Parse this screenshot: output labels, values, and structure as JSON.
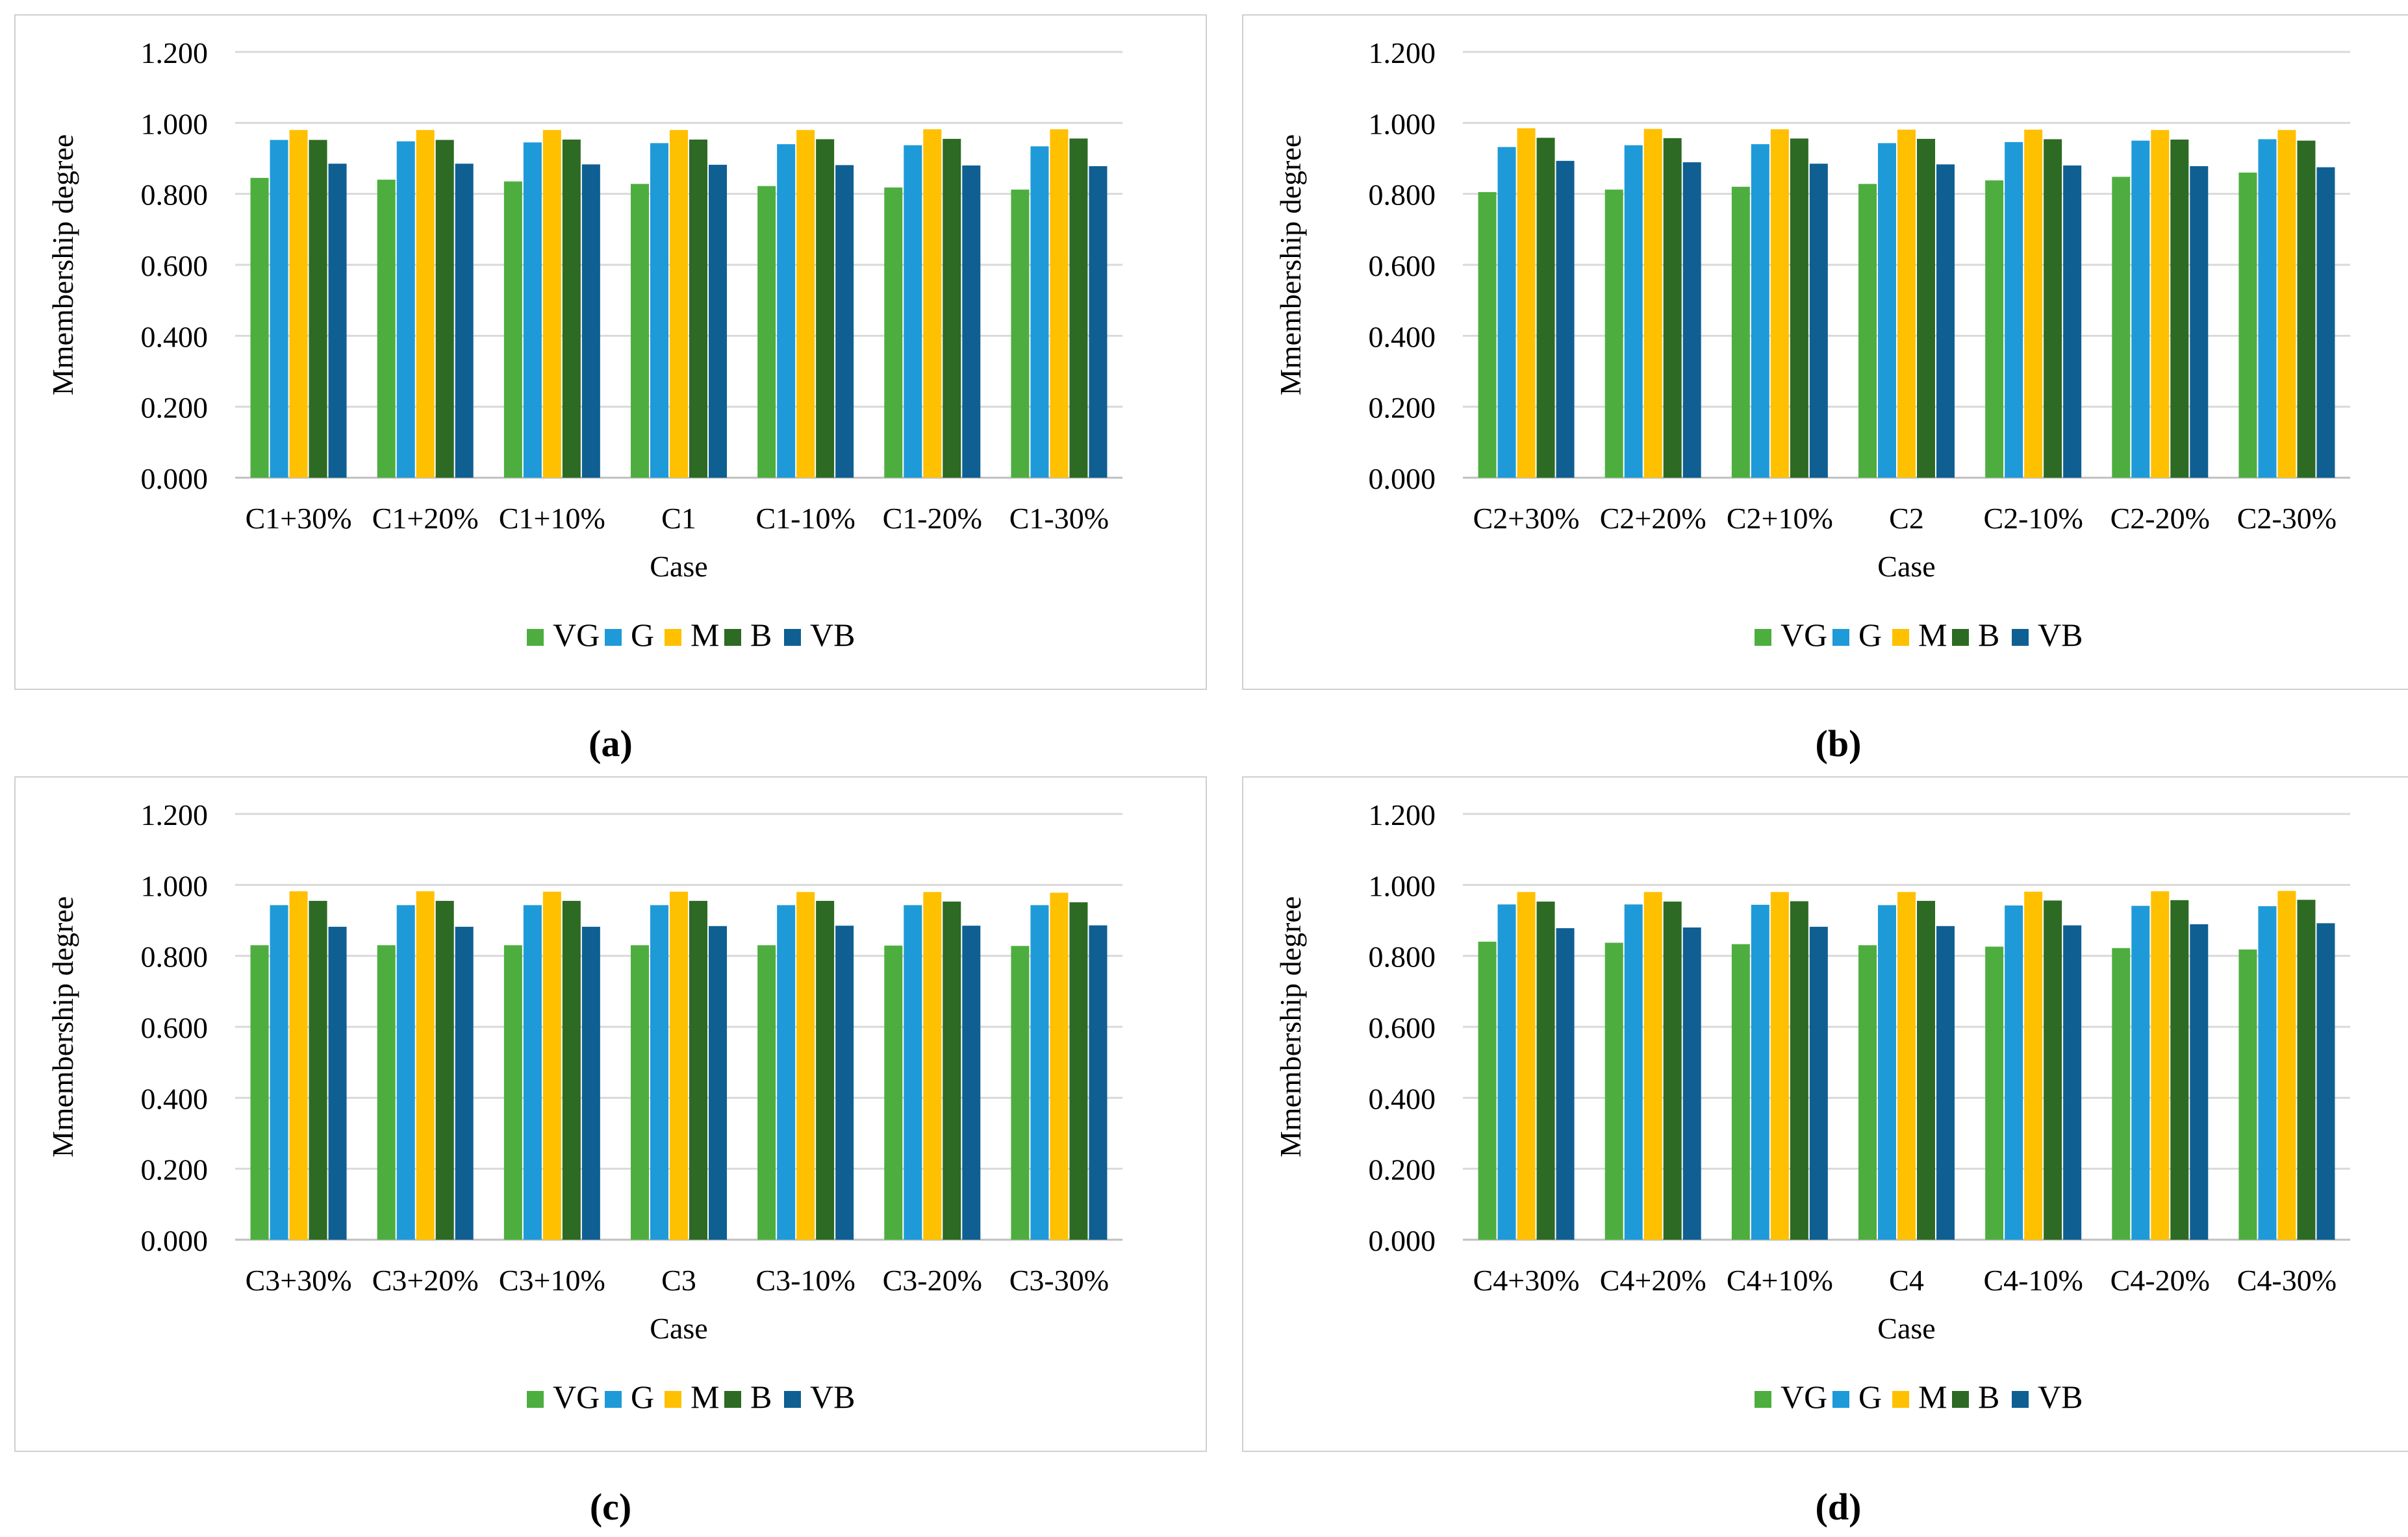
{
  "colors": {
    "VG": "#4dae3f",
    "G": "#1f9ad8",
    "M": "#ffc000",
    "B": "#2d6a23",
    "VB": "#0f5f93",
    "grid": "#d9d9d9",
    "frame": "#d0d0d0",
    "text": "#000000"
  },
  "panels": [
    {
      "id": "a",
      "label": "(a)"
    },
    {
      "id": "b",
      "label": "(b)"
    },
    {
      "id": "c",
      "label": "(c)"
    },
    {
      "id": "d",
      "label": "(d)"
    }
  ],
  "chart_data": [
    {
      "type": "bar",
      "panel": "(a)",
      "xlabel": "Case",
      "ylabel": "Mmembership degree",
      "ylim": [
        0,
        1.2
      ],
      "yticks": [
        "0.000",
        "0.200",
        "0.400",
        "0.600",
        "0.800",
        "1.000",
        "1.200"
      ],
      "grid": true,
      "legend": "bottom",
      "categories": [
        "C1+30%",
        "C1+20%",
        "C1+10%",
        "C1",
        "C1-10%",
        "C1-20%",
        "C1-30%"
      ],
      "series": [
        {
          "name": "VG",
          "values": [
            0.845,
            0.84,
            0.835,
            0.828,
            0.822,
            0.818,
            0.812
          ]
        },
        {
          "name": "G",
          "values": [
            0.952,
            0.948,
            0.945,
            0.943,
            0.94,
            0.937,
            0.934
          ]
        },
        {
          "name": "M",
          "values": [
            0.98,
            0.98,
            0.98,
            0.98,
            0.98,
            0.982,
            0.982
          ]
        },
        {
          "name": "B",
          "values": [
            0.952,
            0.952,
            0.953,
            0.953,
            0.954,
            0.955,
            0.956
          ]
        },
        {
          "name": "VB",
          "values": [
            0.885,
            0.885,
            0.883,
            0.882,
            0.881,
            0.88,
            0.878
          ]
        }
      ]
    },
    {
      "type": "bar",
      "panel": "(b)",
      "xlabel": "Case",
      "ylabel": "Mmembership degree",
      "ylim": [
        0,
        1.2
      ],
      "yticks": [
        "0.000",
        "0.200",
        "0.400",
        "0.600",
        "0.800",
        "1.000",
        "1.200"
      ],
      "grid": true,
      "legend": "bottom",
      "categories": [
        "C2+30%",
        "C2+20%",
        "C2+10%",
        "C2",
        "C2-10%",
        "C2-20%",
        "C2-30%"
      ],
      "series": [
        {
          "name": "VG",
          "values": [
            0.805,
            0.812,
            0.82,
            0.828,
            0.838,
            0.848,
            0.86
          ]
        },
        {
          "name": "G",
          "values": [
            0.932,
            0.937,
            0.94,
            0.943,
            0.946,
            0.95,
            0.954
          ]
        },
        {
          "name": "M",
          "values": [
            0.985,
            0.983,
            0.982,
            0.981,
            0.981,
            0.98,
            0.98
          ]
        },
        {
          "name": "B",
          "values": [
            0.958,
            0.957,
            0.956,
            0.955,
            0.954,
            0.953,
            0.95
          ]
        },
        {
          "name": "VB",
          "values": [
            0.893,
            0.889,
            0.885,
            0.883,
            0.88,
            0.878,
            0.875
          ]
        }
      ]
    },
    {
      "type": "bar",
      "panel": "(c)",
      "xlabel": "Case",
      "ylabel": "Mmembership degree",
      "ylim": [
        0,
        1.2
      ],
      "yticks": [
        "0.000",
        "0.200",
        "0.400",
        "0.600",
        "0.800",
        "1.000",
        "1.200"
      ],
      "grid": true,
      "legend": "bottom",
      "categories": [
        "C3+30%",
        "C3+20%",
        "C3+10%",
        "C3",
        "C3-10%",
        "C3-20%",
        "C3-30%"
      ],
      "series": [
        {
          "name": "VG",
          "values": [
            0.83,
            0.83,
            0.83,
            0.83,
            0.83,
            0.829,
            0.828
          ]
        },
        {
          "name": "G",
          "values": [
            0.943,
            0.943,
            0.943,
            0.943,
            0.943,
            0.943,
            0.943
          ]
        },
        {
          "name": "M",
          "values": [
            0.982,
            0.982,
            0.981,
            0.981,
            0.98,
            0.98,
            0.978
          ]
        },
        {
          "name": "B",
          "values": [
            0.955,
            0.955,
            0.955,
            0.955,
            0.955,
            0.953,
            0.951
          ]
        },
        {
          "name": "VB",
          "values": [
            0.882,
            0.882,
            0.882,
            0.884,
            0.885,
            0.885,
            0.886
          ]
        }
      ]
    },
    {
      "type": "bar",
      "panel": "(d)",
      "xlabel": "Case",
      "ylabel": "Mmembership degree",
      "ylim": [
        0,
        1.2
      ],
      "yticks": [
        "0.000",
        "0.200",
        "0.400",
        "0.600",
        "0.800",
        "1.000",
        "1.200"
      ],
      "grid": true,
      "legend": "bottom",
      "categories": [
        "C4+30%",
        "C4+20%",
        "C4+10%",
        "C4",
        "C4-10%",
        "C4-20%",
        "C4-30%"
      ],
      "series": [
        {
          "name": "VG",
          "values": [
            0.84,
            0.837,
            0.833,
            0.83,
            0.826,
            0.822,
            0.818
          ]
        },
        {
          "name": "G",
          "values": [
            0.945,
            0.945,
            0.944,
            0.943,
            0.942,
            0.941,
            0.94
          ]
        },
        {
          "name": "M",
          "values": [
            0.98,
            0.98,
            0.98,
            0.98,
            0.981,
            0.982,
            0.983
          ]
        },
        {
          "name": "B",
          "values": [
            0.953,
            0.953,
            0.954,
            0.955,
            0.956,
            0.957,
            0.958
          ]
        },
        {
          "name": "VB",
          "values": [
            0.878,
            0.88,
            0.882,
            0.884,
            0.886,
            0.889,
            0.892
          ]
        }
      ]
    }
  ]
}
